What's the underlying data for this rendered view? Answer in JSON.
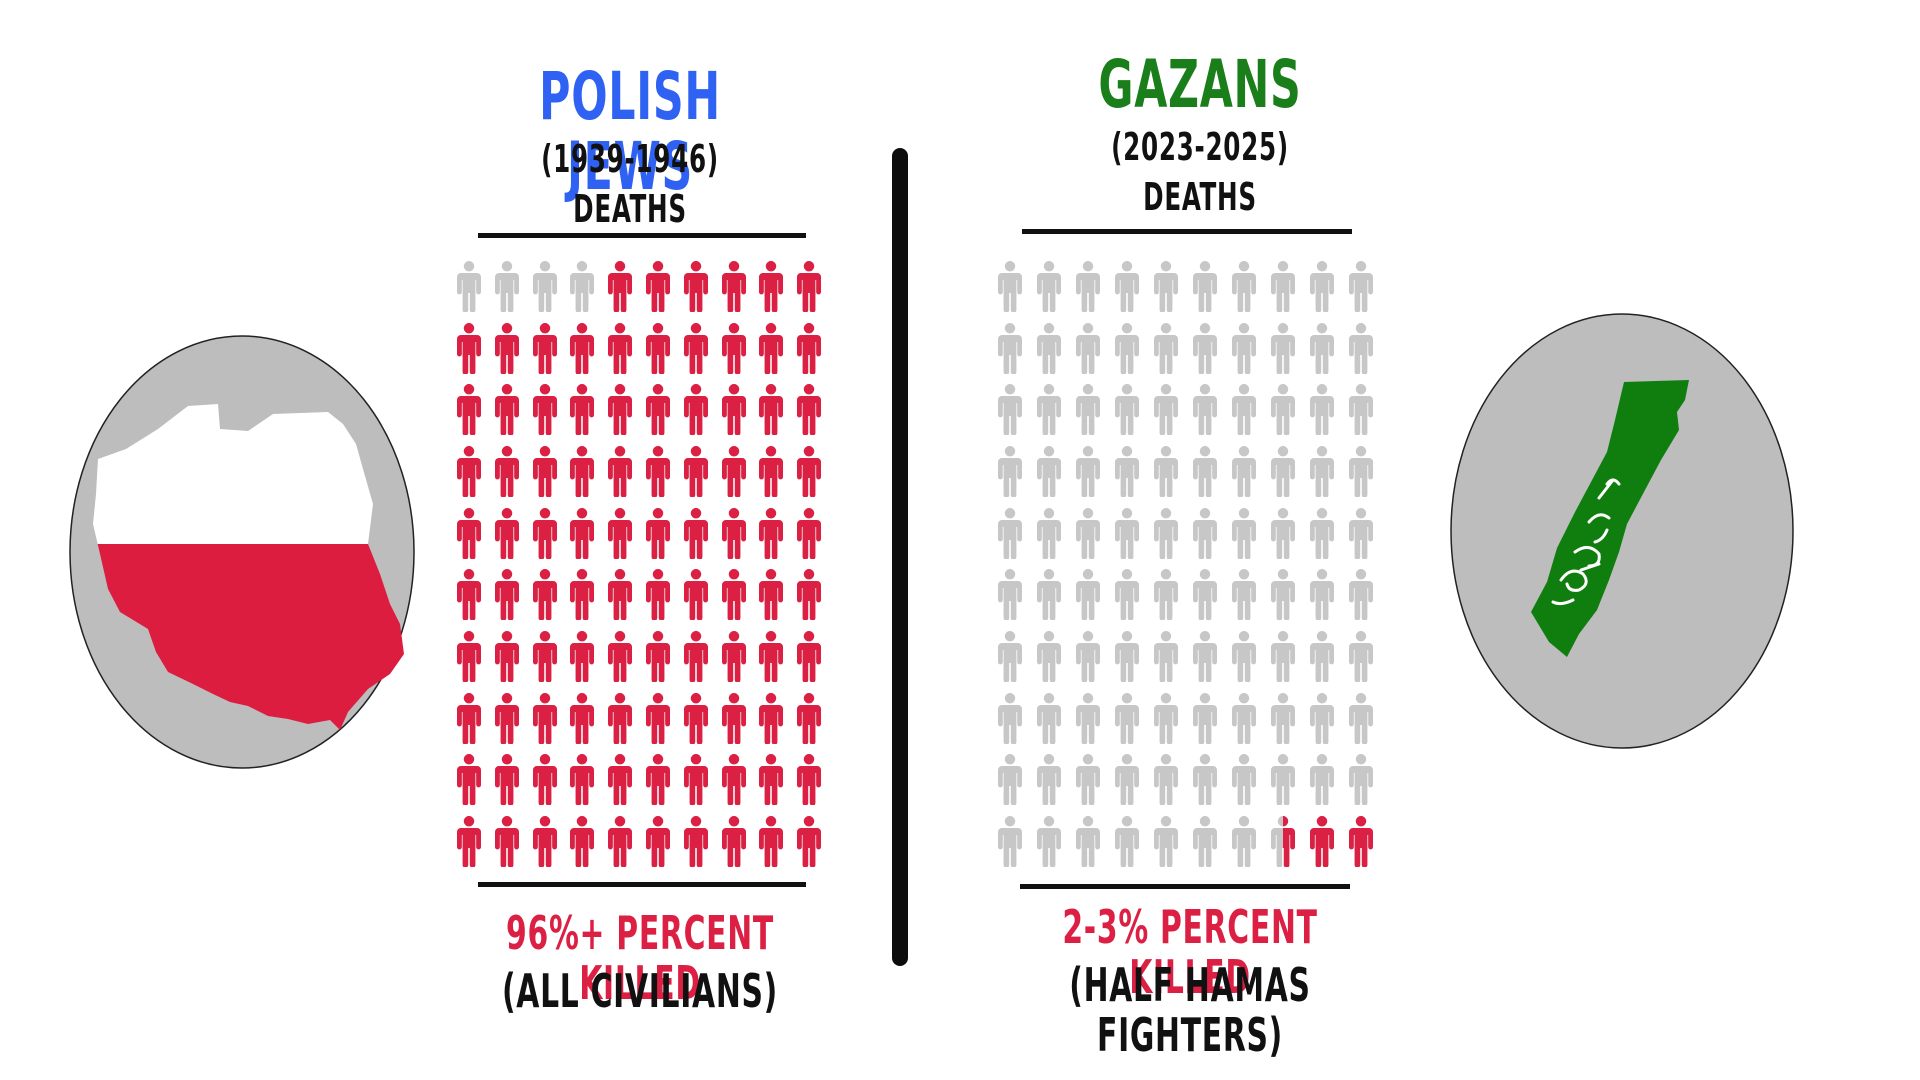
{
  "colors": {
    "polish_title": "#2f62f2",
    "gazan_title": "#1a7f1a",
    "killed": "#db2044",
    "alive": "#c7c7c7",
    "circle_bg": "#bdbdbd",
    "poland_red": "#dc1d3f",
    "gaza_green": "#0f7e0f",
    "text_dark": "#111111"
  },
  "left": {
    "title": "POLISH JEWS",
    "years": "(1939-1946)",
    "label": "DEATHS",
    "killed_percent": 96,
    "grid_total": 100,
    "grid_killed": 96,
    "caption_main": "96%+ PERCENT KILLED",
    "caption_sub": "(ALL CIVILIANS)",
    "map_icon": "poland-flag-map-icon"
  },
  "right": {
    "title": "GAZANS",
    "years": "(2023-2025)",
    "label": "DEATHS",
    "killed_percent_range": "2-3",
    "grid_total": 100,
    "grid_killed": 2.5,
    "caption_main": "2-3% PERCENT KILLED",
    "caption_sub": "(HALF HAMAS FIGHTERS)",
    "map_icon": "gaza-hamas-flag-map-icon"
  }
}
